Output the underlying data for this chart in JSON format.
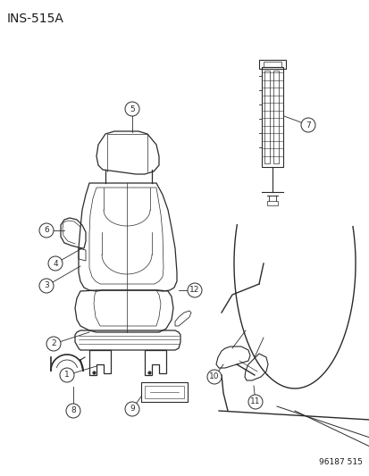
{
  "title": "INS-515A",
  "footer": "96187 515",
  "bg_color": "#ffffff",
  "line_color": "#2a2a2a",
  "label_color": "#1a1a1a",
  "title_fontsize": 10,
  "footer_fontsize": 6.5,
  "label_fontsize": 6.5,
  "fig_width": 4.14,
  "fig_height": 5.33,
  "dpi": 100
}
